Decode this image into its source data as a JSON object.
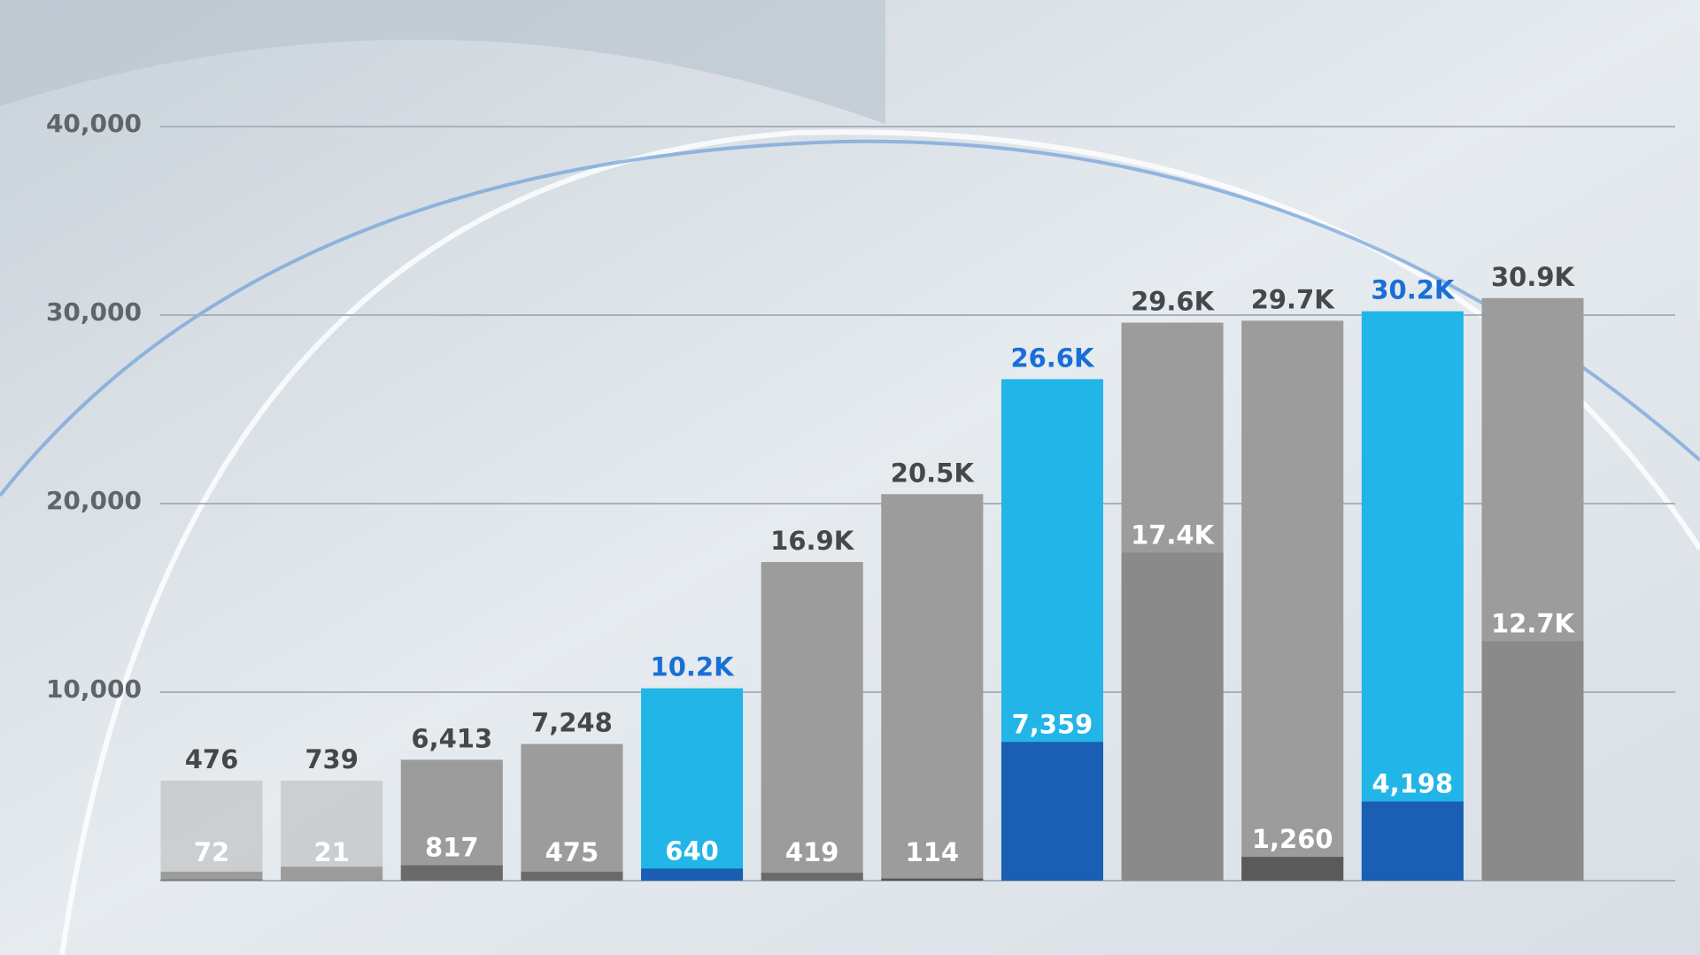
{
  "chart_data": {
    "type": "bar",
    "ylim": [
      0,
      40000
    ],
    "yticks": [
      {
        "value": 10000,
        "label": "10,000"
      },
      {
        "value": 20000,
        "label": "20,000"
      },
      {
        "value": 30000,
        "label": "30,000"
      },
      {
        "value": 40000,
        "label": "40,000"
      }
    ],
    "grid": true,
    "series": [
      {
        "colors": [
          "#9c9c9c",
          "#9c9c9c",
          "#9c9c9c",
          "#9c9c9c",
          "#22b5e8",
          "#9c9c9c",
          "#9c9c9c",
          "#22b5e8",
          "#9c9c9c",
          "#9c9c9c",
          "#22b5e8",
          "#9c9c9c"
        ],
        "label_colors": [
          "#45484b",
          "#45484b",
          "#45484b",
          "#45484b",
          "#1a6fd6",
          "#45484b",
          "#45484b",
          "#1a6fd6",
          "#45484b",
          "#45484b",
          "#1a6fd6",
          "#45484b"
        ],
        "values": [
          476,
          739,
          6413,
          7248,
          10200,
          16900,
          20500,
          26600,
          29600,
          29700,
          30200,
          30900
        ],
        "value_labels": [
          "476",
          "739",
          "6,413",
          "7,248",
          "10.2K",
          "16.9K",
          "20.5K",
          "26.6K",
          "29.6K",
          "29.7K",
          "30.2K",
          "30.9K"
        ]
      },
      {
        "colors": [
          "#7a7a7a",
          "#7a7a7a",
          "#6a6a6a",
          "#6a6a6a",
          "#1a5fb4",
          "#6a6a6a",
          "#555555",
          "#1a5fb4",
          "#8a8a8a",
          "#5a5a5a",
          "#1a5fb4",
          "#8a8a8a"
        ],
        "values": [
          72,
          21,
          817,
          475,
          640,
          419,
          114,
          7359,
          17400,
          1260,
          4198,
          12700
        ],
        "value_labels": [
          "72",
          "21",
          "817",
          "475",
          "640",
          "419",
          "114",
          "7,359",
          "17.4K",
          "1,260",
          "4,198",
          "12.7K"
        ]
      }
    ]
  }
}
